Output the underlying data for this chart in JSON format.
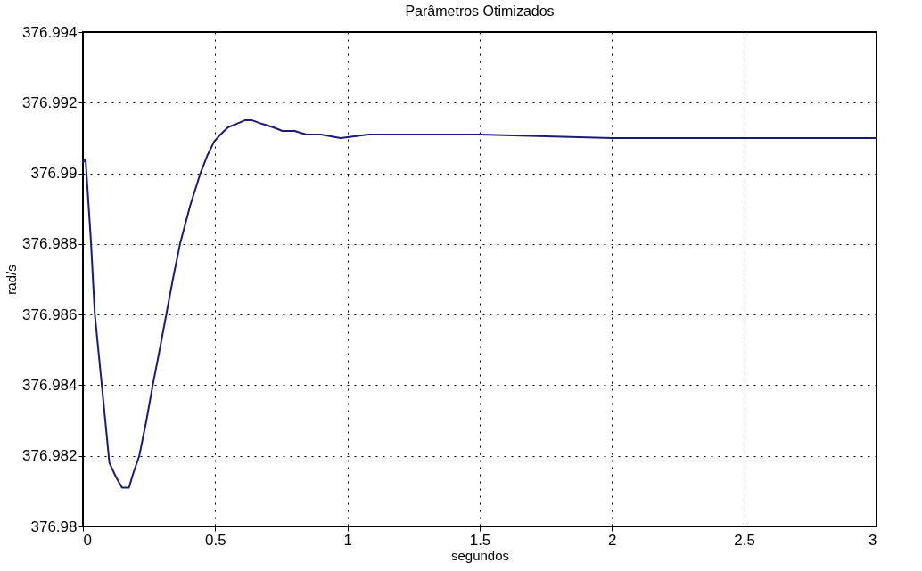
{
  "chart_data": {
    "type": "line",
    "title": "Parâmetros Otimizados",
    "xlabel": "segundos",
    "ylabel": "rad/s",
    "xlim": [
      0,
      3
    ],
    "xticks": [
      0,
      0.5,
      1,
      1.5,
      2,
      2.5,
      3
    ],
    "ylim": [
      376.98,
      376.994
    ],
    "yticks": [
      376.98,
      376.982,
      376.984,
      376.986,
      376.988,
      376.99,
      376.992,
      376.994
    ],
    "grid": true,
    "line_style": "solid",
    "marker": "none",
    "series": [
      {
        "color": "#1c1c78",
        "x": [
          0,
          0.01,
          0.03,
          0.045,
          0.07,
          0.1,
          0.125,
          0.148,
          0.174,
          0.19,
          0.213,
          0.24,
          0.264,
          0.29,
          0.315,
          0.34,
          0.367,
          0.406,
          0.444,
          0.47,
          0.496,
          0.52,
          0.548,
          0.58,
          0.612,
          0.64,
          0.677,
          0.72,
          0.754,
          0.8,
          0.845,
          0.9,
          0.974,
          1.08,
          1.2,
          1.5,
          2,
          2.5,
          3
        ],
        "values": [
          376.9903,
          376.9904,
          376.9881,
          376.986,
          376.9841,
          376.9818,
          376.9814,
          376.9811,
          376.9811,
          376.9815,
          376.982,
          376.983,
          376.984,
          376.985,
          376.986,
          376.987,
          376.988,
          376.9891,
          376.99,
          376.9905,
          376.9909,
          376.9911,
          376.9913,
          376.9914,
          376.9915,
          376.9915,
          376.9914,
          376.9913,
          376.9912,
          376.9912,
          376.9911,
          376.9911,
          376.991,
          376.9911,
          376.9911,
          376.9911,
          376.991,
          376.991,
          376.991
        ]
      }
    ]
  }
}
